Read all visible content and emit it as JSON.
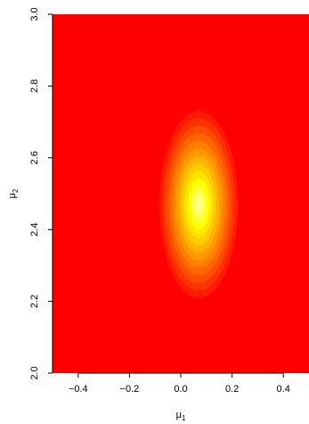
{
  "chart_data": {
    "type": "heatmap",
    "xlabel": "μ",
    "xlabel_sub": "1",
    "ylabel": "μ",
    "ylabel_sub": "2",
    "xlim": [
      -0.5,
      0.5
    ],
    "ylim": [
      2.0,
      3.0
    ],
    "x_ticks": [
      -0.4,
      -0.2,
      0.0,
      0.2,
      0.4
    ],
    "x_tick_labels": [
      "−0.4",
      "−0.2",
      "0.0",
      "0.2",
      "0.4"
    ],
    "y_ticks": [
      2.0,
      2.2,
      2.4,
      2.6,
      2.8,
      3.0
    ],
    "y_tick_labels": [
      "2.0",
      "2.2",
      "2.4",
      "2.6",
      "2.8",
      "3.0"
    ],
    "density_peak": {
      "x": 0.07,
      "y": 2.47
    },
    "density_sd": {
      "x": 0.05,
      "y": 0.085
    },
    "color_levels": [
      "#ff0000",
      "#ff1a00",
      "#ff3300",
      "#ff4d00",
      "#ff6600",
      "#ff8000",
      "#ff9900",
      "#ffb300",
      "#ffcc00",
      "#ffe600",
      "#ffff00",
      "#ffff40",
      "#ffff80"
    ],
    "grid": false,
    "legend": "none",
    "background_color": "#ff0000"
  }
}
